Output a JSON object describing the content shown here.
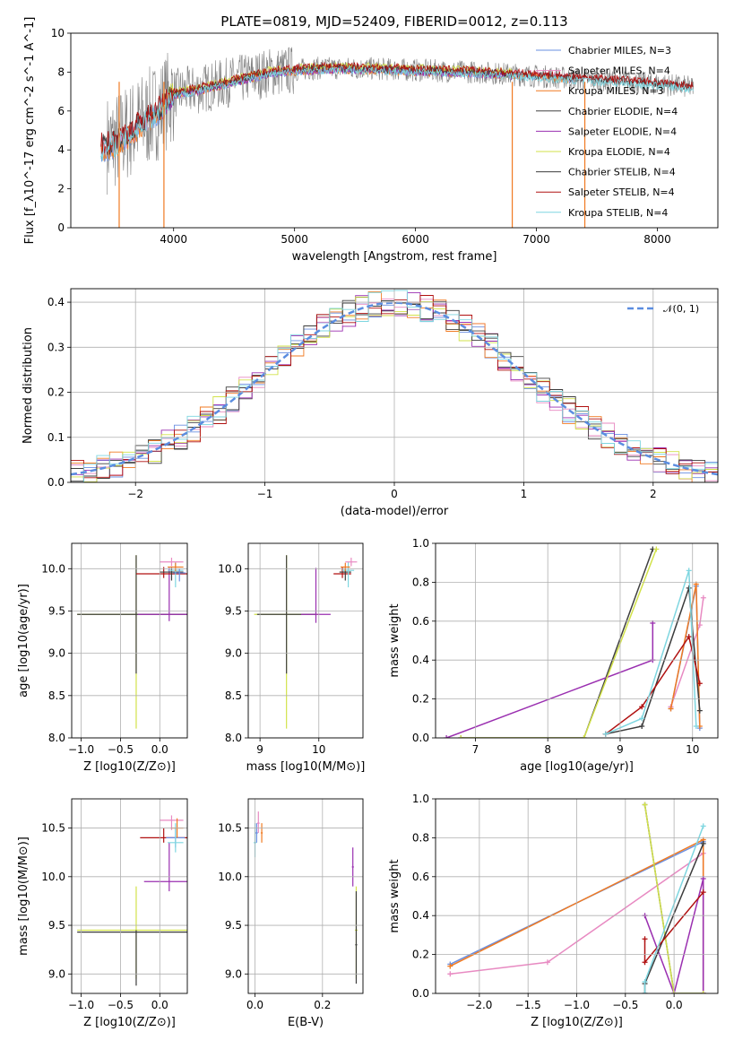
{
  "figure_title": "PLATE=0819, MJD=52409, FIBERID=0012, z=0.113",
  "colors": {
    "Chabrier MILES": "#6a8fe0",
    "Salpeter MILES": "#e88ac2",
    "Kroupa MILES": "#f07a22",
    "Chabrier ELODIE": "#404040",
    "Salpeter ELODIE": "#9a2fb0",
    "Kroupa ELODIE": "#d2e24a",
    "Chabrier STELIB": "#3c3c3c",
    "Salpeter STELIB": "#b01010",
    "Kroupa STELIB": "#7ed6e0",
    "data": "#808080",
    "normal": "#5b8de0"
  },
  "chart_data": [
    {
      "id": "spectrum",
      "type": "line",
      "xlabel": "wavelength [Angstrom, rest frame]",
      "ylabel": "Flux [f_λ10^-17 erg cm^-2 s^-1 A^-1]",
      "xlim": [
        3150,
        8500
      ],
      "ylim": [
        0,
        10
      ],
      "xticks": [
        "4000",
        "5000",
        "6000",
        "7000",
        "8000"
      ],
      "yticks": [
        "0",
        "2",
        "4",
        "6",
        "8",
        "10"
      ],
      "grid": false,
      "legend_position": "right",
      "series": [
        {
          "name": "Chabrier MILES, N_SSP=3",
          "x": [
            3400,
            3500,
            3600,
            3700,
            3800,
            3900,
            4000,
            4200,
            4400,
            4600,
            4800,
            5000,
            5200,
            5500,
            6000,
            6500,
            7000,
            7300
          ],
          "values": [
            3.9,
            4.1,
            4.5,
            5.0,
            5.5,
            6.0,
            6.8,
            7.0,
            7.3,
            7.6,
            7.9,
            8.0,
            8.1,
            8.1,
            8.0,
            7.9,
            7.8,
            7.6
          ]
        },
        {
          "name": "Salpeter MILES, N_SSP=4",
          "x": [
            3400,
            3500,
            3600,
            3700,
            3800,
            3900,
            4000,
            4200,
            4400,
            4600,
            4800,
            5000,
            5200,
            5500,
            6000,
            6500,
            7000,
            7300
          ],
          "values": [
            4.0,
            4.2,
            4.6,
            5.1,
            5.6,
            6.1,
            6.9,
            7.1,
            7.4,
            7.7,
            8.0,
            8.1,
            8.2,
            8.2,
            8.1,
            8.0,
            7.9,
            7.7
          ]
        },
        {
          "name": "Kroupa MILES, N_SSP=3",
          "x": [
            3400,
            3500,
            3600,
            3700,
            3800,
            3900,
            4000,
            4200,
            4400,
            4600,
            4800,
            5000,
            5200,
            5500,
            6000,
            6500,
            7000,
            7300
          ],
          "values": [
            3.9,
            4.1,
            4.5,
            5.0,
            5.5,
            6.0,
            6.8,
            7.0,
            7.3,
            7.6,
            7.9,
            8.0,
            8.1,
            8.1,
            8.0,
            7.9,
            7.8,
            7.6
          ]
        },
        {
          "name": "Chabrier ELODIE, N_SSP=4",
          "x": [
            3900,
            4000,
            4200,
            4400,
            4600,
            4800,
            5000,
            5200,
            5500,
            6000,
            6500,
            6800
          ],
          "values": [
            6.2,
            6.9,
            7.1,
            7.4,
            7.7,
            8.0,
            8.1,
            8.2,
            8.2,
            8.1,
            8.0,
            7.9
          ]
        },
        {
          "name": "Salpeter ELODIE, N_SSP=4",
          "x": [
            3900,
            4000,
            4200,
            4400,
            4600,
            4800,
            5000,
            5200,
            5500,
            6000,
            6500,
            6800
          ],
          "values": [
            6.1,
            6.8,
            7.0,
            7.3,
            7.6,
            7.9,
            8.0,
            8.1,
            8.1,
            8.0,
            7.9,
            7.8
          ]
        },
        {
          "name": "Kroupa ELODIE, N_SSP=4",
          "x": [
            3900,
            4000,
            4200,
            4400,
            4600,
            4800,
            5000,
            5200,
            5500,
            6000,
            6500,
            6800
          ],
          "values": [
            6.3,
            7.0,
            7.2,
            7.5,
            7.8,
            8.1,
            8.2,
            8.3,
            8.3,
            8.2,
            8.1,
            8.0
          ]
        },
        {
          "name": "Chabrier STELIB, N_SSP=4",
          "x": [
            3400,
            3500,
            3600,
            3700,
            3800,
            3900,
            4000,
            4200,
            4400,
            4600,
            4800,
            5000,
            5200,
            5500,
            6000,
            6500,
            7000,
            7500,
            8000,
            8300
          ],
          "values": [
            4.2,
            4.4,
            4.8,
            5.3,
            5.7,
            6.2,
            6.9,
            7.1,
            7.4,
            7.7,
            8.0,
            8.1,
            8.2,
            8.2,
            8.1,
            8.0,
            7.8,
            7.6,
            7.4,
            7.2
          ]
        },
        {
          "name": "Salpeter STELIB, N_SSP=4",
          "x": [
            3400,
            3500,
            3600,
            3700,
            3800,
            3900,
            4000,
            4200,
            4400,
            4600,
            4800,
            5000,
            5200,
            5500,
            6000,
            6500,
            7000,
            7500,
            8000,
            8300
          ],
          "values": [
            4.3,
            4.5,
            4.9,
            5.4,
            5.8,
            6.3,
            7.0,
            7.2,
            7.5,
            7.8,
            8.1,
            8.2,
            8.3,
            8.3,
            8.2,
            8.1,
            7.9,
            7.7,
            7.5,
            7.3
          ]
        },
        {
          "name": "Kroupa STELIB, N_SSP=4",
          "x": [
            3400,
            3500,
            3600,
            3700,
            3800,
            3900,
            4000,
            4200,
            4400,
            4600,
            4800,
            5000,
            5200,
            5500,
            6000,
            6500,
            7000,
            7500,
            8000,
            8300
          ],
          "values": [
            4.0,
            4.2,
            4.6,
            5.1,
            5.6,
            6.1,
            6.8,
            7.0,
            7.3,
            7.6,
            7.9,
            8.0,
            8.1,
            8.1,
            8.0,
            7.9,
            7.7,
            7.5,
            7.3,
            7.1
          ]
        }
      ]
    },
    {
      "id": "residuals",
      "type": "line",
      "xlabel": "(data-model)/error",
      "ylabel": "Normed distribution",
      "xlim": [
        -2.5,
        2.5
      ],
      "ylim": [
        0,
        0.43
      ],
      "xticks": [
        "−2",
        "−1",
        "0",
        "1",
        "2"
      ],
      "yticks": [
        "0.0",
        "0.1",
        "0.2",
        "0.3",
        "0.4"
      ],
      "grid": true,
      "legend_position": "top-right",
      "legend": "𝒩(0, 1)"
    },
    {
      "id": "age_vs_Z",
      "type": "scatter",
      "xlabel": "Z [log10(Z/Z⊙)]",
      "ylabel": "age  [log10(age/yr)]",
      "xlim": [
        -1.12,
        0.35
      ],
      "ylim": [
        8.0,
        10.3
      ],
      "xticks": [
        "−1.0",
        "−0.5",
        "0.0"
      ],
      "yticks": [
        "8.0",
        "8.5",
        "9.0",
        "9.5",
        "10.0"
      ],
      "grid": true
    },
    {
      "id": "age_vs_mass",
      "type": "scatter",
      "xlabel": "mass [log10(M/M⊙)]",
      "xlim": [
        8.8,
        10.75
      ],
      "ylim": [
        8.0,
        10.3
      ],
      "xticks": [
        "9",
        "10"
      ],
      "yticks": [
        "8.0",
        "8.5",
        "9.0",
        "9.5",
        "10.0"
      ],
      "grid": true
    },
    {
      "id": "weight_vs_age",
      "type": "line",
      "xlabel": "age  [log10(age/yr)]",
      "ylabel": "mass weight",
      "xlim": [
        6.45,
        10.35
      ],
      "ylim": [
        0,
        1
      ],
      "xticks": [
        "7",
        "8",
        "9",
        "10"
      ],
      "yticks": [
        "0.0",
        "0.2",
        "0.4",
        "0.6",
        "0.8",
        "1.0"
      ],
      "grid": true,
      "series": [
        {
          "name": "Chabrier MILES",
          "x": [
            9.7,
            10.05,
            10.1
          ],
          "values": [
            0.15,
            0.78,
            0.05
          ]
        },
        {
          "name": "Salpeter MILES",
          "x": [
            9.7,
            10.1,
            10.15
          ],
          "values": [
            0.16,
            0.58,
            0.72
          ]
        },
        {
          "name": "Kroupa MILES",
          "x": [
            9.7,
            10.05,
            10.1
          ],
          "values": [
            0.15,
            0.79,
            0.06
          ]
        },
        {
          "name": "Chabrier ELODIE",
          "x": [
            6.8,
            8.5,
            9.45
          ],
          "values": [
            0.0,
            0.0,
            0.97
          ]
        },
        {
          "name": "Salpeter ELODIE",
          "x": [
            6.6,
            9.45,
            9.45
          ],
          "values": [
            0.0,
            0.4,
            0.59
          ]
        },
        {
          "name": "Kroupa ELODIE",
          "x": [
            6.8,
            8.5,
            9.5
          ],
          "values": [
            0.0,
            0.0,
            0.97
          ]
        },
        {
          "name": "Chabrier STELIB",
          "x": [
            8.8,
            9.3,
            9.95,
            10.1
          ],
          "values": [
            0.02,
            0.06,
            0.77,
            0.14
          ]
        },
        {
          "name": "Salpeter STELIB",
          "x": [
            8.8,
            9.3,
            9.95,
            10.1
          ],
          "values": [
            0.02,
            0.16,
            0.52,
            0.28
          ]
        },
        {
          "name": "Kroupa STELIB",
          "x": [
            8.8,
            9.3,
            9.95,
            10.05
          ],
          "values": [
            0.02,
            0.1,
            0.86,
            0.06
          ]
        }
      ]
    },
    {
      "id": "mass_vs_Z",
      "type": "scatter",
      "xlabel": "Z [log10(Z/Z⊙)]",
      "ylabel": "mass [log10(M/M⊙)]",
      "xlim": [
        -1.12,
        0.35
      ],
      "ylim": [
        8.8,
        10.8
      ],
      "xticks": [
        "−1.0",
        "−0.5",
        "0.0"
      ],
      "yticks": [
        "9.0",
        "9.5",
        "10.0",
        "10.5"
      ],
      "grid": true
    },
    {
      "id": "mass_vs_EBV",
      "type": "scatter",
      "xlabel": "E(B-V)",
      "xlim": [
        -0.02,
        0.32
      ],
      "ylim": [
        8.8,
        10.8
      ],
      "xticks": [
        "0.0",
        "0.2"
      ],
      "yticks": [
        "9.0",
        "9.5",
        "10.0",
        "10.5"
      ],
      "grid": true
    },
    {
      "id": "weight_vs_Z",
      "type": "line",
      "xlabel": "Z [log10(Z/Z⊙)]",
      "ylabel": "mass weight",
      "xlim": [
        -2.45,
        0.45
      ],
      "ylim": [
        0,
        1
      ],
      "xticks": [
        "−2.0",
        "−1.5",
        "−1.0",
        "−0.5",
        "0.0"
      ],
      "yticks": [
        "0.0",
        "0.2",
        "0.4",
        "0.6",
        "0.8",
        "1.0"
      ],
      "grid": true,
      "series": [
        {
          "name": "Chabrier MILES",
          "x": [
            -2.3,
            0.3,
            0.3
          ],
          "values": [
            0.15,
            0.78,
            0.0
          ]
        },
        {
          "name": "Salpeter MILES",
          "x": [
            -2.3,
            -1.3,
            0.3,
            0.3
          ],
          "values": [
            0.1,
            0.16,
            0.72,
            0.0
          ]
        },
        {
          "name": "Kroupa MILES",
          "x": [
            -2.3,
            0.3,
            0.3
          ],
          "values": [
            0.14,
            0.79,
            0.0
          ]
        },
        {
          "name": "Chabrier ELODIE",
          "x": [
            -0.3,
            0.0,
            0.3
          ],
          "values": [
            0.97,
            0.0,
            0.0
          ]
        },
        {
          "name": "Salpeter ELODIE",
          "x": [
            -0.3,
            0.0,
            0.3,
            0.3
          ],
          "values": [
            0.4,
            0.0,
            0.59,
            0.0
          ]
        },
        {
          "name": "Kroupa ELODIE",
          "x": [
            -0.3,
            0.0,
            0.3
          ],
          "values": [
            0.97,
            0.0,
            0.0
          ]
        },
        {
          "name": "Chabrier STELIB",
          "x": [
            -0.3,
            -0.3,
            0.3
          ],
          "values": [
            0.0,
            0.05,
            0.77
          ]
        },
        {
          "name": "Salpeter STELIB",
          "x": [
            -0.3,
            -0.3,
            0.3
          ],
          "values": [
            0.28,
            0.16,
            0.52
          ]
        },
        {
          "name": "Kroupa STELIB",
          "x": [
            -0.3,
            -0.3,
            0.3
          ],
          "values": [
            0.0,
            0.06,
            0.86
          ]
        }
      ]
    }
  ]
}
